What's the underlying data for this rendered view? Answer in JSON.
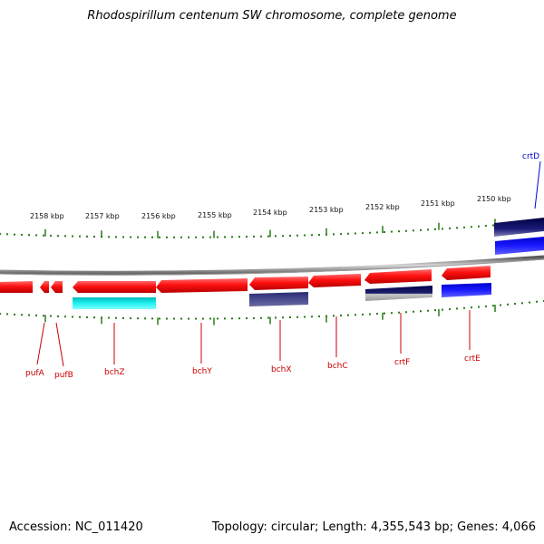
{
  "title": "Rhodospirillum centenum SW chromosome, complete genome",
  "footer": {
    "accession": "Accession: NC_011420",
    "summary": "Topology: circular; Length: 4,355,543 bp; Genes: 4,066"
  },
  "scale_labels": [
    "2158 kbp",
    "2157 kbp",
    "2156 kbp",
    "2155 kbp",
    "2154 kbp",
    "2153 kbp",
    "2152 kbp",
    "2151 kbp",
    "2150 kbp"
  ],
  "genes": [
    {
      "name": "pufA",
      "color": "#cc0000"
    },
    {
      "name": "pufB",
      "color": "#cc0000"
    },
    {
      "name": "bchZ",
      "color": "#cc0000"
    },
    {
      "name": "bchY",
      "color": "#cc0000"
    },
    {
      "name": "bchX",
      "color": "#cc0000"
    },
    {
      "name": "bchC",
      "color": "#cc0000"
    },
    {
      "name": "crtF",
      "color": "#cc0000"
    },
    {
      "name": "crtE",
      "color": "#cc0000"
    },
    {
      "name": "crtD",
      "color": "#0000cc"
    }
  ],
  "colors": {
    "backbone": "#8a8a8a",
    "gene_red": "#e00000",
    "tick_green": "#2a7a1a",
    "cyan": "#00dddd",
    "navy": "#10106a",
    "slate": "#3a3a80",
    "blue": "#0000ee"
  }
}
